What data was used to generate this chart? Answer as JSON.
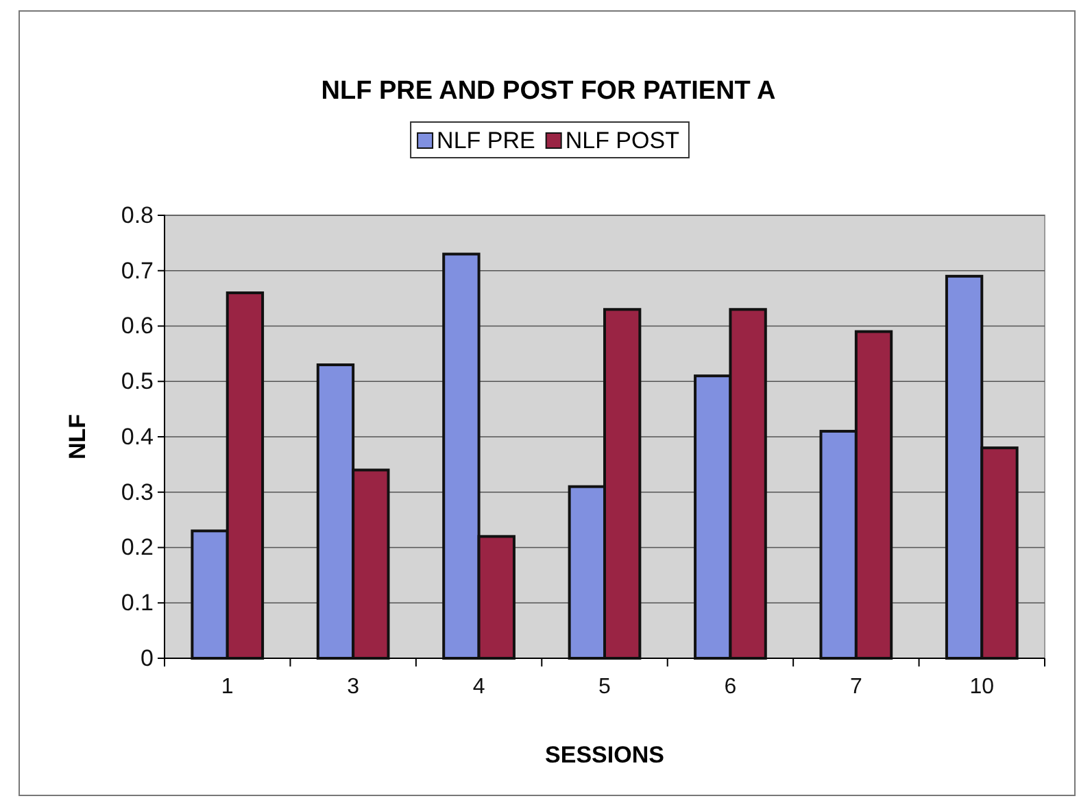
{
  "chart_data": {
    "type": "bar",
    "title": "NLF PRE AND POST FOR PATIENT A",
    "xlabel": "SESSIONS",
    "ylabel": "NLF",
    "categories": [
      "1",
      "3",
      "4",
      "5",
      "6",
      "7",
      "10"
    ],
    "series": [
      {
        "name": "NLF PRE",
        "color": "#8090e0",
        "values": [
          0.23,
          0.53,
          0.73,
          0.31,
          0.51,
          0.41,
          0.69
        ]
      },
      {
        "name": "NLF POST",
        "color": "#9a2444",
        "values": [
          0.66,
          0.34,
          0.22,
          0.63,
          0.63,
          0.59,
          0.38
        ]
      }
    ],
    "ylim": [
      0,
      0.8
    ],
    "yticks": [
      0,
      0.1,
      0.2,
      0.3,
      0.4,
      0.5,
      0.6,
      0.7,
      0.8
    ],
    "grid": "y",
    "legend": "top"
  }
}
